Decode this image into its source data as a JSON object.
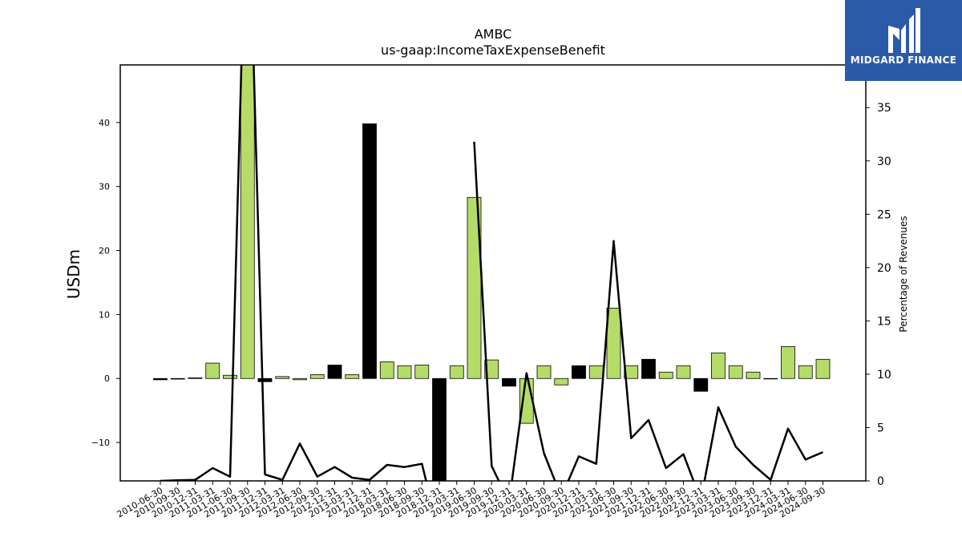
{
  "chart_data": {
    "type": "bar",
    "title": "AMBC",
    "subtitle": "us-gaap:IncomeTaxExpenseBenefit",
    "ylabel": "USDm",
    "y2label": "Percentage of Revenues",
    "ylim": [
      -16,
      49
    ],
    "y2lim": [
      0,
      39
    ],
    "yticks": [
      -10,
      0,
      10,
      20,
      30,
      40
    ],
    "y2ticks": [
      0,
      5,
      10,
      15,
      20,
      25,
      30,
      35
    ],
    "categories": [
      "2010-06-30",
      "2010-09-30",
      "2010-12-31",
      "2011-03-31",
      "2011-06-30",
      "2011-09-30",
      "2011-12-31",
      "2012-03-31",
      "2012-06-30",
      "2012-09-30",
      "2012-12-31",
      "2013-03-31",
      "2017-12-31",
      "2018-03-31",
      "2018-06-30",
      "2018-09-30",
      "2018-12-31",
      "2019-03-31",
      "2019-06-30",
      "2019-09-30",
      "2019-12-31",
      "2020-03-31",
      "2020-06-30",
      "2020-09-30",
      "2020-12-31",
      "2021-03-31",
      "2021-06-30",
      "2021-09-30",
      "2021-12-31",
      "2022-06-30",
      "2022-09-30",
      "2022-12-31",
      "2023-03-31",
      "2023-06-30",
      "2023-09-30",
      "2023-12-31",
      "2024-03-31",
      "2024-06-30",
      "2024-09-30"
    ],
    "series": [
      {
        "type": "bar",
        "values": [
          -0.2,
          -0.1,
          0.1,
          2.4,
          0.5,
          49,
          -0.5,
          0.3,
          -0.2,
          0.6,
          2.1,
          0.6,
          39.8,
          2.6,
          2,
          2.1,
          -16,
          2,
          28.3,
          2.9,
          -1.2,
          -7,
          2,
          -1,
          2,
          2,
          11,
          2,
          3,
          1,
          2,
          -2,
          4,
          2,
          1,
          0,
          5,
          2,
          3
        ],
        "colors": [
          "#000000",
          "#000000",
          "#000000",
          "#b5dc68",
          "#b5dc68",
          "#b5dc68",
          "#000000",
          "#b5dc68",
          "#b5dc68",
          "#b5dc68",
          "#000000",
          "#b5dc68",
          "#000000",
          "#b5dc68",
          "#b5dc68",
          "#b5dc68",
          "#000000",
          "#b5dc68",
          "#b5dc68",
          "#b5dc68",
          "#000000",
          "#b5dc68",
          "#b5dc68",
          "#b5dc68",
          "#000000",
          "#b5dc68",
          "#b5dc68",
          "#b5dc68",
          "#000000",
          "#b5dc68",
          "#b5dc68",
          "#000000",
          "#b5dc68",
          "#b5dc68",
          "#b5dc68",
          "#000000",
          "#b5dc68",
          "#b5dc68",
          "#b5dc68"
        ]
      },
      {
        "type": "line",
        "axis": "y2",
        "color": "#000000",
        "values": [
          0,
          0.05,
          0.1,
          1.2,
          0.4,
          60,
          0.6,
          0.1,
          3.5,
          0.4,
          1.3,
          0.3,
          0.1,
          1.5,
          1.3,
          1.6,
          -5,
          null,
          31.8,
          1.4,
          -2,
          10.1,
          2.6,
          -1.5,
          2.3,
          1.6,
          22.5,
          4,
          5.7,
          1.2,
          2.5,
          -1.8,
          6.9,
          3.2,
          1.5,
          0.1,
          4.9,
          2,
          2.7
        ]
      }
    ],
    "bar_color": "#b5dc68",
    "negative_bar_color": "#000000",
    "grid": false
  },
  "logo": {
    "text": "MIDGARD FINANCE",
    "background": "#2b5aa8"
  }
}
